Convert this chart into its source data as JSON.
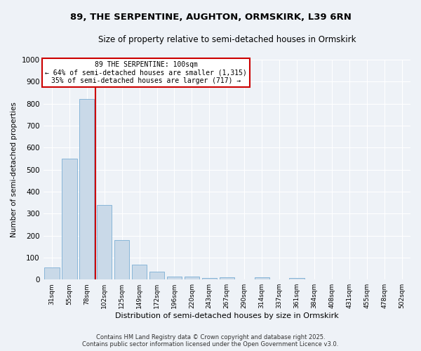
{
  "title_line1": "89, THE SERPENTINE, AUGHTON, ORMSKIRK, L39 6RN",
  "title_line2": "Size of property relative to semi-detached houses in Ormskirk",
  "xlabel": "Distribution of semi-detached houses by size in Ormskirk",
  "ylabel": "Number of semi-detached properties",
  "categories": [
    "31sqm",
    "55sqm",
    "78sqm",
    "102sqm",
    "125sqm",
    "149sqm",
    "172sqm",
    "196sqm",
    "220sqm",
    "243sqm",
    "267sqm",
    "290sqm",
    "314sqm",
    "337sqm",
    "361sqm",
    "384sqm",
    "408sqm",
    "431sqm",
    "455sqm",
    "478sqm",
    "502sqm"
  ],
  "values": [
    55,
    550,
    820,
    340,
    178,
    68,
    35,
    15,
    12,
    8,
    10,
    0,
    10,
    0,
    8,
    0,
    0,
    0,
    0,
    0,
    0
  ],
  "bar_color": "#c9d9e8",
  "bar_edge_color": "#7bafd4",
  "vline_color": "#cc0000",
  "annotation_title": "89 THE SERPENTINE: 100sqm",
  "annotation_line1": "← 64% of semi-detached houses are smaller (1,315)",
  "annotation_line2": "35% of semi-detached houses are larger (717) →",
  "annotation_box_color": "#cc0000",
  "ylim": [
    0,
    1000
  ],
  "yticks": [
    0,
    100,
    200,
    300,
    400,
    500,
    600,
    700,
    800,
    900,
    1000
  ],
  "footer_line1": "Contains HM Land Registry data © Crown copyright and database right 2025.",
  "footer_line2": "Contains public sector information licensed under the Open Government Licence v3.0.",
  "bg_color": "#eef2f7",
  "plot_bg_color": "#eef2f7"
}
